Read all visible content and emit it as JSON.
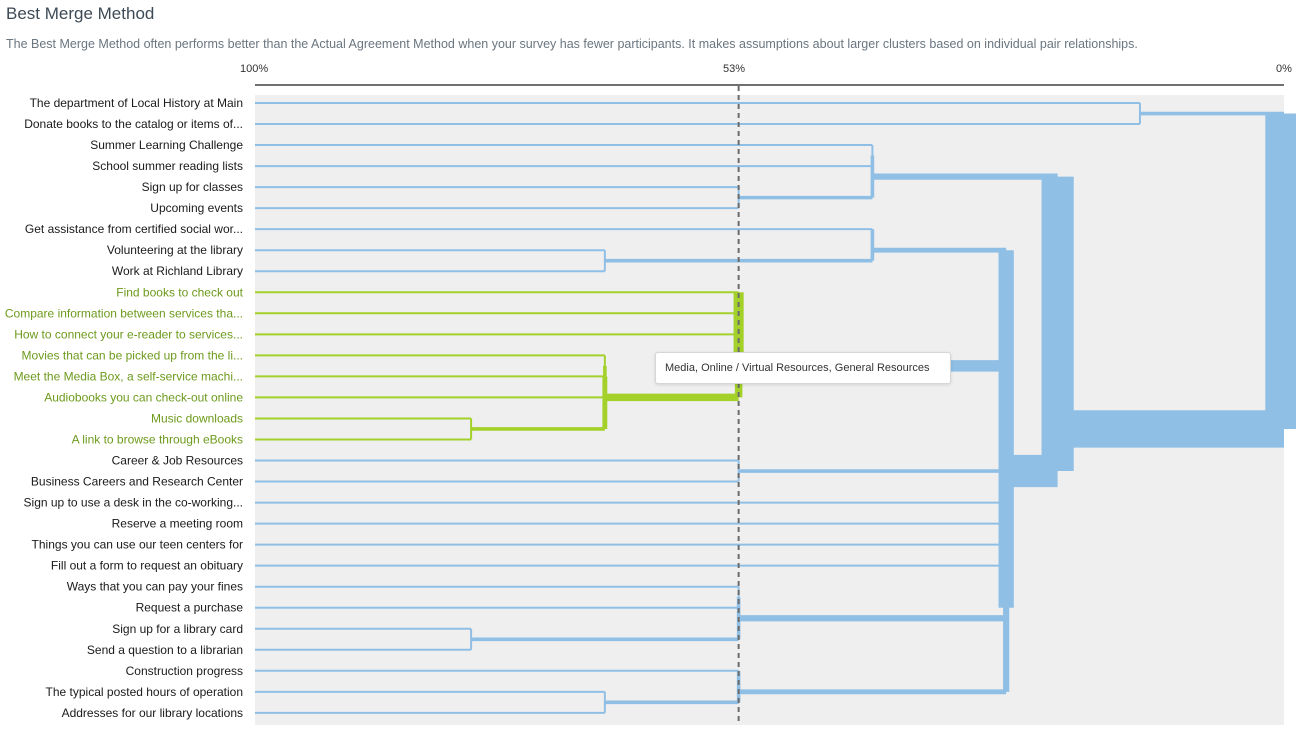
{
  "header": {
    "title": "Best Merge Method",
    "description": "The Best Merge Method often performs better than the Actual Agreement Method when your survey has fewer participants. It makes assumptions about larger clusters based on individual pair relationships."
  },
  "axis": {
    "ticks": [
      "100%",
      "53%",
      "0%"
    ],
    "threshold_percent": 53
  },
  "colors": {
    "blue": "#90bfe6",
    "green": "#a3d12a",
    "green_text": "#6d9a1c",
    "panel": "#efefef",
    "threshold": "#6b6b6b"
  },
  "tooltip": {
    "text": "Media, Online / Virtual Resources, General Resources"
  },
  "items": [
    {
      "label": "The department of Local History at Main",
      "group": "blue"
    },
    {
      "label": "Donate books to the catalog or items of...",
      "group": "blue"
    },
    {
      "label": "Summer Learning Challenge",
      "group": "blue"
    },
    {
      "label": "School summer reading lists",
      "group": "blue"
    },
    {
      "label": "Sign up for classes",
      "group": "blue"
    },
    {
      "label": "Upcoming events",
      "group": "blue"
    },
    {
      "label": "Get assistance from certified social wor...",
      "group": "blue"
    },
    {
      "label": "Volunteering at the library",
      "group": "blue"
    },
    {
      "label": "Work at Richland Library",
      "group": "blue"
    },
    {
      "label": "Find books to check out",
      "group": "green"
    },
    {
      "label": "Compare information between services tha...",
      "group": "green"
    },
    {
      "label": "How to connect your e-reader to services...",
      "group": "green"
    },
    {
      "label": "Movies that can be picked up from the li...",
      "group": "green"
    },
    {
      "label": "Meet the Media Box, a self-service machi...",
      "group": "green"
    },
    {
      "label": "Audiobooks you can check-out online",
      "group": "green"
    },
    {
      "label": "Music downloads",
      "group": "green"
    },
    {
      "label": "A link to browse through eBooks",
      "group": "green"
    },
    {
      "label": "Career & Job Resources",
      "group": "blue"
    },
    {
      "label": "Business Careers and Research Center",
      "group": "blue"
    },
    {
      "label": "Sign up to use a desk in the co-working...",
      "group": "blue"
    },
    {
      "label": "Reserve a meeting room",
      "group": "blue"
    },
    {
      "label": "Things you can use our teen centers for",
      "group": "blue"
    },
    {
      "label": "Fill out a form to request an obituary",
      "group": "blue"
    },
    {
      "label": "Ways that you can pay your fines",
      "group": "blue"
    },
    {
      "label": "Request a purchase",
      "group": "blue"
    },
    {
      "label": "Sign up for a library card",
      "group": "blue"
    },
    {
      "label": "Send a question to a librarian",
      "group": "blue"
    },
    {
      "label": "Construction progress",
      "group": "blue"
    },
    {
      "label": "The typical posted hours of operation",
      "group": "blue"
    },
    {
      "label": "Addresses for our library locations",
      "group": "blue"
    }
  ],
  "merges": [
    {
      "id": "m_ab",
      "children": [
        0,
        1
      ],
      "agreement": 14,
      "group": "blue"
    },
    {
      "id": "m_cd",
      "children": [
        2,
        3
      ],
      "agreement": 40,
      "group": "blue"
    },
    {
      "id": "m_ef",
      "children": [
        4,
        5
      ],
      "agreement": 53,
      "group": "blue"
    },
    {
      "id": "m_cdef",
      "children": [
        "m_cd",
        "m_ef"
      ],
      "agreement": 40,
      "group": "blue"
    },
    {
      "id": "m_hi",
      "children": [
        7,
        8
      ],
      "agreement": 66,
      "group": "blue"
    },
    {
      "id": "m_ghi",
      "children": [
        6,
        "m_hi"
      ],
      "agreement": 40,
      "group": "blue"
    },
    {
      "id": "m_op",
      "children": [
        15,
        16
      ],
      "agreement": 79,
      "group": "green"
    },
    {
      "id": "m_mn",
      "children": [
        12,
        13
      ],
      "agreement": 66,
      "group": "green"
    },
    {
      "id": "m_mno",
      "children": [
        "m_mn",
        14
      ],
      "agreement": 66,
      "group": "green"
    },
    {
      "id": "m_mnop",
      "children": [
        "m_mno",
        "m_op"
      ],
      "agreement": 66,
      "group": "green"
    },
    {
      "id": "m_kl",
      "children": [
        10,
        11
      ],
      "agreement": 53,
      "group": "green"
    },
    {
      "id": "m_klmnop",
      "children": [
        "m_kl",
        "m_mnop"
      ],
      "agreement": 53,
      "group": "green"
    },
    {
      "id": "m_green",
      "children": [
        9,
        "m_klmnop"
      ],
      "agreement": 53,
      "group": "green"
    },
    {
      "id": "m_rs",
      "children": [
        17,
        18
      ],
      "agreement": 53,
      "group": "blue"
    },
    {
      "id": "m_tu",
      "children": [
        19,
        20
      ],
      "agreement": 27,
      "group": "blue"
    },
    {
      "id": "m_vw",
      "children": [
        21,
        22
      ],
      "agreement": 27,
      "group": "blue"
    },
    {
      "id": "m_xy",
      "children": [
        23,
        24
      ],
      "agreement": 53,
      "group": "blue"
    },
    {
      "id": "m_za",
      "children": [
        25,
        26
      ],
      "agreement": 79,
      "group": "blue"
    },
    {
      "id": "m_xyza",
      "children": [
        "m_xy",
        "m_za"
      ],
      "agreement": 53,
      "group": "blue"
    },
    {
      "id": "m_ef2",
      "children": [
        28,
        29
      ],
      "agreement": 66,
      "group": "blue"
    },
    {
      "id": "m_def",
      "children": [
        27,
        "m_ef2"
      ],
      "agreement": 53,
      "group": "blue"
    },
    {
      "id": "m_bottom",
      "children": [
        "m_tu",
        "m_vw",
        "m_xyza",
        "m_def"
      ],
      "agreement": 27,
      "group": "blue"
    },
    {
      "id": "m_mid",
      "children": [
        "m_ghi",
        "m_green",
        "m_rs",
        "m_bottom"
      ],
      "agreement": 27,
      "group": "blue"
    },
    {
      "id": "m_top",
      "children": [
        "m_cdef",
        "m_mid"
      ],
      "agreement": 22,
      "group": "blue"
    },
    {
      "id": "m_root",
      "children": [
        "m_ab",
        "m_top"
      ],
      "agreement": 0,
      "group": "blue"
    }
  ]
}
